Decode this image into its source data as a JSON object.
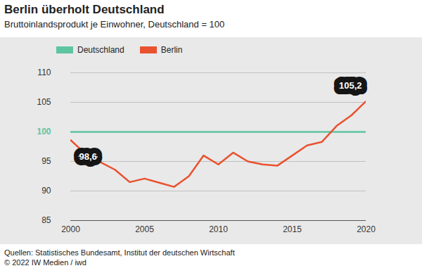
{
  "chart_data": {
    "type": "line",
    "title": "Berlin überholt Deutschland",
    "subtitle": "Bruttoinlandsprodukt je Einwohner, Deutschland = 100",
    "x": [
      2000,
      2001,
      2002,
      2003,
      2004,
      2005,
      2006,
      2007,
      2008,
      2009,
      2010,
      2011,
      2012,
      2013,
      2014,
      2015,
      2016,
      2017,
      2018,
      2019,
      2020
    ],
    "series": [
      {
        "name": "Deutschland",
        "color": "#5ec5a1",
        "values": [
          100,
          100,
          100,
          100,
          100,
          100,
          100,
          100,
          100,
          100,
          100,
          100,
          100,
          100,
          100,
          100,
          100,
          100,
          100,
          100,
          100
        ]
      },
      {
        "name": "Berlin",
        "color": "#e9522f",
        "values": [
          98.6,
          96.3,
          94.9,
          93.6,
          91.5,
          92.1,
          91.4,
          90.7,
          92.5,
          96.0,
          94.5,
          96.5,
          95.0,
          94.5,
          94.3,
          96.0,
          97.7,
          98.3,
          101.0,
          102.8,
          105.2
        ]
      }
    ],
    "xlim": [
      2000,
      2020
    ],
    "xticks": [
      2000,
      2005,
      2010,
      2015,
      2020
    ],
    "ylim": [
      85,
      110
    ],
    "yticks": [
      85,
      90,
      95,
      100,
      105,
      110
    ],
    "grid": true,
    "legend": "top-left",
    "annotations": [
      {
        "text": "98,6",
        "x": 2000,
        "y": 98.6
      },
      {
        "text": "105,2",
        "x": 2020,
        "y": 105.2
      }
    ],
    "source": "Quellen: Statistisches Bundesamt, Institut der deutschen Wirtschaft",
    "credit": "© 2022 IW Medien / iwd"
  }
}
